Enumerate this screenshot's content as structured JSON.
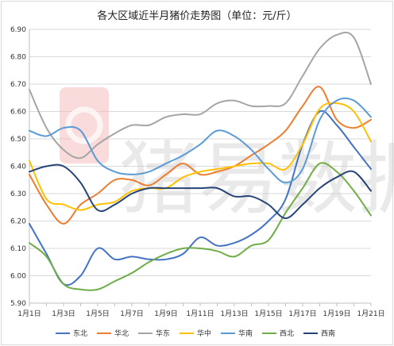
{
  "chart_data": {
    "type": "line",
    "title": "各大区域近半月猪价走势图（单位：元/斤）",
    "watermark": "猪易数据",
    "x": [
      "1月1日",
      "1月2日",
      "1月3日",
      "1月4日",
      "1月5日",
      "1月6日",
      "1月7日",
      "1月8日",
      "1月9日",
      "1月10日",
      "1月11日",
      "1月12日",
      "1月13日",
      "1月14日",
      "1月15日",
      "1月16日",
      "1月17日",
      "1月18日",
      "1月19日",
      "1月20日",
      "1月21日"
    ],
    "x_tick_labels": [
      "1月1日",
      "",
      "1月3日",
      "",
      "1月5日",
      "",
      "1月7日",
      "",
      "1月9日",
      "",
      "1月11日",
      "",
      "1月13日",
      "",
      "1月15日",
      "",
      "1月17日",
      "",
      "1月19日",
      "",
      "1月21日"
    ],
    "ylim": [
      5.9,
      6.9
    ],
    "y_ticks": [
      "5.90",
      "6.00",
      "6.10",
      "6.20",
      "6.30",
      "6.40",
      "6.50",
      "6.60",
      "6.70",
      "6.80",
      "6.90"
    ],
    "grid": true,
    "legend": "bottom",
    "series": [
      {
        "name": "东北",
        "color": "#4472c4",
        "values": [
          6.19,
          6.08,
          5.97,
          6.0,
          6.1,
          6.06,
          6.07,
          6.06,
          6.06,
          6.08,
          6.14,
          6.11,
          6.12,
          6.15,
          6.2,
          6.28,
          6.48,
          6.6,
          6.55,
          6.47,
          6.39
        ]
      },
      {
        "name": "华北",
        "color": "#ed7d31",
        "values": [
          6.37,
          6.26,
          6.19,
          6.26,
          6.3,
          6.35,
          6.35,
          6.33,
          6.37,
          6.41,
          6.37,
          6.38,
          6.4,
          6.44,
          6.48,
          6.53,
          6.62,
          6.69,
          6.57,
          6.54,
          6.57
        ]
      },
      {
        "name": "华东",
        "color": "#a5a5a5",
        "values": [
          6.68,
          6.54,
          6.46,
          6.43,
          6.48,
          6.52,
          6.55,
          6.55,
          6.58,
          6.59,
          6.59,
          6.63,
          6.64,
          6.62,
          6.62,
          6.63,
          6.73,
          6.83,
          6.88,
          6.87,
          6.7
        ]
      },
      {
        "name": "华中",
        "color": "#ffc000",
        "values": [
          6.42,
          6.28,
          6.26,
          6.24,
          6.26,
          6.27,
          6.31,
          6.32,
          6.32,
          6.36,
          6.38,
          6.39,
          6.4,
          6.41,
          6.41,
          6.39,
          6.48,
          6.61,
          6.63,
          6.6,
          6.49
        ]
      },
      {
        "name": "华南",
        "color": "#5b9bd5",
        "values": [
          6.53,
          6.51,
          6.54,
          6.53,
          6.42,
          6.38,
          6.37,
          6.38,
          6.41,
          6.44,
          6.48,
          6.53,
          6.51,
          6.46,
          6.39,
          6.34,
          6.39,
          6.57,
          6.64,
          6.64,
          6.58
        ]
      },
      {
        "name": "西北",
        "color": "#70ad47",
        "values": [
          6.12,
          6.07,
          5.97,
          5.95,
          5.95,
          5.98,
          6.01,
          6.05,
          6.08,
          6.1,
          6.1,
          6.09,
          6.07,
          6.11,
          6.13,
          6.23,
          6.32,
          6.41,
          6.38,
          6.31,
          6.22
        ]
      },
      {
        "name": "西南",
        "color": "#264478",
        "values": [
          6.38,
          6.4,
          6.4,
          6.34,
          6.24,
          6.26,
          6.3,
          6.32,
          6.32,
          6.32,
          6.32,
          6.32,
          6.29,
          6.29,
          6.26,
          6.21,
          6.26,
          6.32,
          6.36,
          6.38,
          6.31
        ]
      }
    ]
  }
}
